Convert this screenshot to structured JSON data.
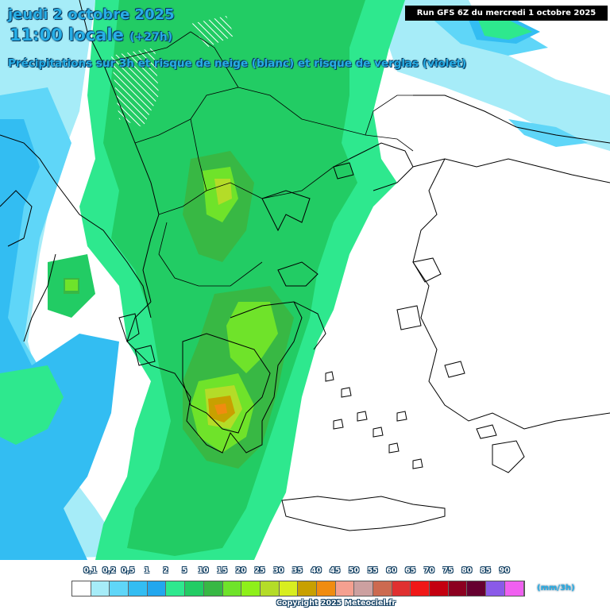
{
  "header": {
    "date_line": "jeudi 2 octobre 2025",
    "time_line": "11:00 locale",
    "time_offset": "(+27h)",
    "subtitle": "Précipitations sur 3h et risque de neige (blanc) et risque de verglas (violet)"
  },
  "run_info": "Run GFS 6Z du mercredi 1 octobre 2025",
  "legend": {
    "unit": "(mm/3h)",
    "labels": [
      "0,1",
      "0,2",
      "0,5",
      "1",
      "2",
      "5",
      "10",
      "15",
      "20",
      "25",
      "30",
      "35",
      "40",
      "45",
      "50",
      "55",
      "60",
      "65",
      "70",
      "75",
      "80",
      "85",
      "90"
    ],
    "colors": [
      "#ffffff",
      "#a6ecf8",
      "#5fd6f8",
      "#33bdf2",
      "#22a7ee",
      "#2ee88e",
      "#22cc64",
      "#38b844",
      "#6fe32a",
      "#8ef01a",
      "#b4dc28",
      "#d8ee20",
      "#c8a000",
      "#f08c10",
      "#f4a090",
      "#cca0a0",
      "#cc6a50",
      "#e03030",
      "#f01818",
      "#c40010",
      "#8c0020",
      "#660030",
      "#8a5ae8",
      "#f060f0"
    ]
  },
  "copyright": "Copyright 2025 Meteociel.fr",
  "map_colors": {
    "lightblue": "#a6ecf8",
    "cyan": "#5fd6f8",
    "blue": "#33bdf2",
    "teal": "#2ee88e",
    "green": "#22cc64",
    "darkgreen": "#38b844",
    "lime": "#6fe32a",
    "yellowgreen": "#b4dc28",
    "ochre": "#c8a000",
    "orange": "#f08c10"
  }
}
